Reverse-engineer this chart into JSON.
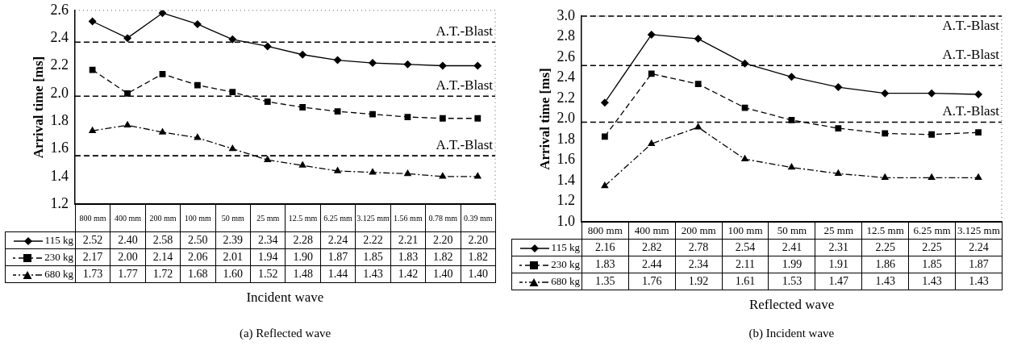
{
  "chart_data": [
    {
      "type": "line",
      "title": "(a)  Reflected wave",
      "xlabel": "Incident wave",
      "ylabel": "Arrival time [ms]",
      "categories": [
        "800 mm",
        "400 mm",
        "200 mm",
        "100 mm",
        "50 mm",
        "25 mm",
        "12.5 mm",
        "6.25 mm",
        "3.125 mm",
        "1.56 mm",
        "0.78 mm",
        "0.39 mm"
      ],
      "series": [
        {
          "name": "115 kg",
          "color": "#000000",
          "marker": "diamond",
          "line_style": "solid",
          "values": [
            2.52,
            2.4,
            2.58,
            2.5,
            2.39,
            2.34,
            2.28,
            2.24,
            2.22,
            2.21,
            2.2,
            2.2
          ],
          "value_labels": [
            "2.52",
            "2.40",
            "2.58",
            "2.50",
            "2.39",
            "2.34",
            "2.28",
            "2.24",
            "2.22",
            "2.21",
            "2.20",
            "2.20"
          ]
        },
        {
          "name": "230 kg",
          "color": "#000000",
          "marker": "square",
          "line_style": "dashed",
          "values": [
            2.17,
            2.0,
            2.14,
            2.06,
            2.01,
            1.94,
            1.9,
            1.87,
            1.85,
            1.83,
            1.82,
            1.82
          ],
          "value_labels": [
            "2.17",
            "2.00",
            "2.14",
            "2.06",
            "2.01",
            "1.94",
            "1.90",
            "1.87",
            "1.85",
            "1.83",
            "1.82",
            "1.82"
          ]
        },
        {
          "name": "680 kg",
          "color": "#000000",
          "marker": "triangle",
          "line_style": "dashdot",
          "values": [
            1.73,
            1.77,
            1.72,
            1.68,
            1.6,
            1.52,
            1.48,
            1.44,
            1.43,
            1.42,
            1.4,
            1.4
          ],
          "value_labels": [
            "1.73",
            "1.77",
            "1.72",
            "1.68",
            "1.60",
            "1.52",
            "1.48",
            "1.44",
            "1.43",
            "1.42",
            "1.40",
            "1.40"
          ]
        }
      ],
      "ylim": [
        1.2,
        2.6
      ],
      "yticks": [
        {
          "value": 1.2,
          "label": "1.2"
        },
        {
          "value": 1.4,
          "label": "1.4"
        },
        {
          "value": 1.6,
          "label": "1.6"
        },
        {
          "value": 1.8,
          "label": "1.8"
        },
        {
          "value": 2.0,
          "label": "2.0"
        },
        {
          "value": 2.2,
          "label": "2.2"
        },
        {
          "value": 2.4,
          "label": "2.4"
        },
        {
          "value": 2.6,
          "label": "2.6"
        }
      ],
      "ref_lines": [
        {
          "axis": "y",
          "value": 2.37,
          "label": "A.T.-Blast",
          "color": "#000000",
          "line_style": "dashed"
        },
        {
          "axis": "y",
          "value": 1.98,
          "label": "A.T.-Blast",
          "color": "#000000",
          "line_style": "dashed"
        },
        {
          "axis": "y",
          "value": 1.55,
          "label": "A.T.-Blast",
          "color": "#000000",
          "line_style": "dashed"
        }
      ],
      "grid": false,
      "legend": "bottom left"
    },
    {
      "type": "line",
      "title": "(b)  Incident wave",
      "xlabel": "Reflected wave",
      "ylabel": "Arrival time [ms]",
      "categories": [
        "800 mm",
        "400 mm",
        "200 mm",
        "100 mm",
        "50 mm",
        "25 mm",
        "12.5 mm",
        "6.25 mm",
        "3.125 mm"
      ],
      "series": [
        {
          "name": "115 kg",
          "color": "#000000",
          "marker": "diamond",
          "line_style": "solid",
          "values": [
            2.16,
            2.82,
            2.78,
            2.54,
            2.41,
            2.31,
            2.25,
            2.25,
            2.24
          ],
          "value_labels": [
            "2.16",
            "2.82",
            "2.78",
            "2.54",
            "2.41",
            "2.31",
            "2.25",
            "2.25",
            "2.24"
          ]
        },
        {
          "name": "230 kg",
          "color": "#000000",
          "marker": "square",
          "line_style": "dashed",
          "values": [
            1.83,
            2.44,
            2.34,
            2.11,
            1.99,
            1.91,
            1.86,
            1.85,
            1.87
          ],
          "value_labels": [
            "1.83",
            "2.44",
            "2.34",
            "2.11",
            "1.99",
            "1.91",
            "1.86",
            "1.85",
            "1.87"
          ]
        },
        {
          "name": "680 kg",
          "color": "#000000",
          "marker": "triangle",
          "line_style": "dashdot",
          "values": [
            1.35,
            1.76,
            1.92,
            1.61,
            1.53,
            1.47,
            1.43,
            1.43,
            1.43
          ],
          "value_labels": [
            "1.35",
            "1.76",
            "1.92",
            "1.61",
            "1.53",
            "1.47",
            "1.43",
            "1.43",
            "1.43"
          ]
        }
      ],
      "ylim": [
        1.0,
        3.0
      ],
      "yticks": [
        {
          "value": 1.0,
          "label": "1.0"
        },
        {
          "value": 1.2,
          "label": "1.2"
        },
        {
          "value": 1.4,
          "label": "1.4"
        },
        {
          "value": 1.6,
          "label": "1.6"
        },
        {
          "value": 1.8,
          "label": "1.8"
        },
        {
          "value": 2.0,
          "label": "2.0"
        },
        {
          "value": 2.2,
          "label": "2.2"
        },
        {
          "value": 2.4,
          "label": "2.4"
        },
        {
          "value": 2.6,
          "label": "2.6"
        },
        {
          "value": 2.8,
          "label": "2.8"
        },
        {
          "value": 3.0,
          "label": "3.0"
        }
      ],
      "ref_lines": [
        {
          "axis": "y",
          "value": 3.0,
          "label": "A.T.-Blast",
          "color": "#000000",
          "line_style": "dashed"
        },
        {
          "axis": "y",
          "value": 2.52,
          "label": "A.T.-Blast",
          "color": "#000000",
          "line_style": "dashed"
        },
        {
          "axis": "y",
          "value": 1.97,
          "label": "A.T.-Blast",
          "color": "#000000",
          "line_style": "dashed"
        }
      ],
      "grid": false,
      "legend": "bottom left"
    }
  ]
}
